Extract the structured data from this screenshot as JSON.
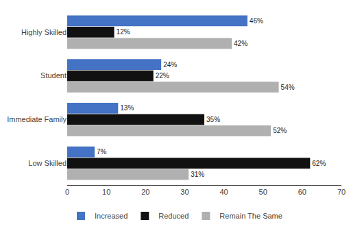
{
  "chart_data": {
    "type": "bar",
    "orientation": "horizontal",
    "categories": [
      "Highly Skilled",
      "Student",
      "Immediate Family",
      "Low Skilled"
    ],
    "series": [
      {
        "name": "Increased",
        "color": "#4472C4",
        "values": [
          46,
          24,
          13,
          7
        ],
        "value_labels": [
          "46%",
          "24%",
          "13%",
          "7%"
        ]
      },
      {
        "name": "Reduced",
        "color": "#111111",
        "values": [
          12,
          22,
          35,
          62
        ],
        "value_labels": [
          "12%",
          "22%",
          "35%",
          "62%"
        ]
      },
      {
        "name": "Remain The Same",
        "color": "#B0B0B0",
        "values": [
          42,
          54,
          52,
          31
        ],
        "value_labels": [
          "42%",
          "54%",
          "52%",
          "31%"
        ]
      }
    ],
    "xlim": [
      0,
      70
    ],
    "xticks": [
      0,
      10,
      20,
      30,
      40,
      50,
      60,
      70
    ],
    "grid": false,
    "legend": "bottom left",
    "data_labels": true
  }
}
